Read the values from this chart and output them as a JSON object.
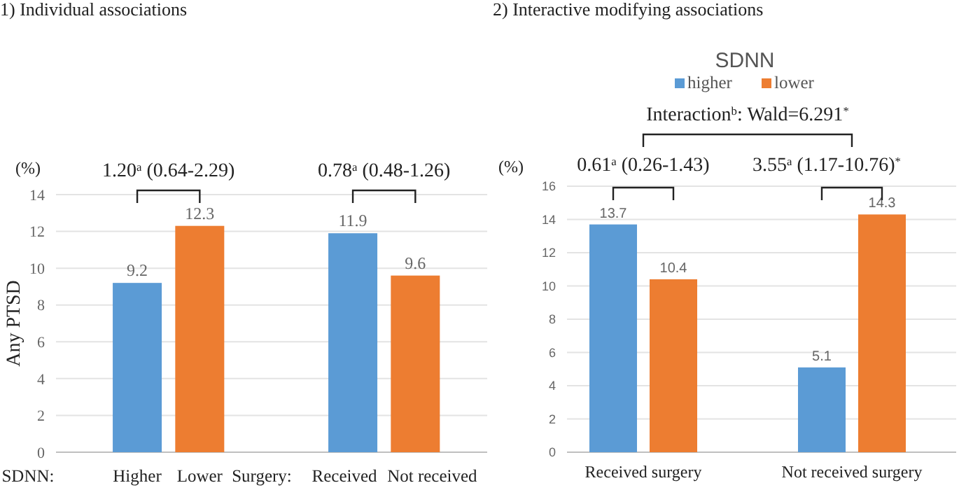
{
  "chart_data": [
    {
      "type": "bar",
      "title": "1) Individual associations",
      "ylabel": "Any PTSD",
      "categories": [
        "Higher",
        "Lower",
        "Received",
        "Not received"
      ],
      "values": [
        9.2,
        12.3,
        11.9,
        9.6
      ],
      "colors": [
        "#5b9bd5",
        "#ed7d31",
        "#5b9bd5",
        "#ed7d31"
      ],
      "ylim": [
        0,
        14
      ],
      "yticks": [
        0,
        2,
        4,
        6,
        8,
        10,
        12,
        14
      ],
      "grid": "y",
      "data_labels": true,
      "annotations": [
        "(%)",
        "1.20$^{a}$ (0.64-2.29)",
        "0.78$^{a}$ (0.48-1.26)",
        "SDNN:",
        "Surgery:"
      ]
    },
    {
      "type": "bar",
      "title": "2) Interactive modifying associations",
      "legend_title": "SDNN",
      "legend": "top",
      "categories": [
        "Received surgery",
        "Not received surgery"
      ],
      "series": [
        {
          "name": "higher",
          "color": "#5b9bd5",
          "values": [
            13.7,
            5.1
          ]
        },
        {
          "name": "lower",
          "color": "#ed7d31",
          "values": [
            10.4,
            14.3
          ]
        }
      ],
      "ylim": [
        0,
        16
      ],
      "yticks": [
        0,
        2,
        4,
        6,
        8,
        10,
        12,
        14,
        16
      ],
      "grid": "y",
      "data_labels": true,
      "annotations": [
        "(%)",
        "0.61$^{a}$ (0.26-1.43)",
        "3.55$^{a}$ (1.17-10.76)$^{*}$",
        "Interaction$^{b}$: Wald=6.291$^{*}$"
      ]
    }
  ]
}
